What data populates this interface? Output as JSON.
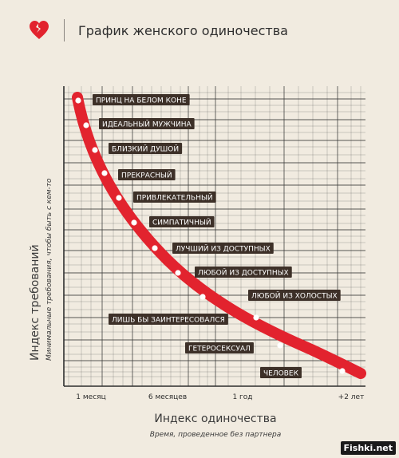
{
  "header": {
    "title": "График женского одиночества",
    "logo_icon": "broken-heart-icon",
    "logo_color": "#e2232e"
  },
  "watermark": "Fishki.net",
  "colors": {
    "background": "#f1ebe0",
    "grid": "#3a3a3a",
    "curve": "#e2232e",
    "label_bg": "#3d3028",
    "label_text": "#ffffff",
    "point": "#ffffff"
  },
  "chart_data": {
    "type": "line",
    "title": "График женского одиночества",
    "xlabel": "Индекс одиночества",
    "xsublabel": "Время, проведенное без партнера",
    "ylabel": "Индекс требований",
    "ysublabel": "Минимальные требования, чтобы быть с кем-то",
    "x_ticks": [
      "1 месяц",
      "6 месяцев",
      "1 год",
      "+2 лет"
    ],
    "grid": true,
    "series": [
      {
        "points": [
          {
            "label": "ПРИНЦ НА БЕЛОМ КОНЕ"
          },
          {
            "label": "ИДЕАЛЬНЫЙ МУЖЧИНА"
          },
          {
            "label": "БЛИЗКИЙ ДУШОЙ"
          },
          {
            "label": "ПРЕКРАСНЫЙ"
          },
          {
            "label": "ПРИВЛЕКАТЕЛЬНЫЙ"
          },
          {
            "label": "СИМПАТИЧНЫЙ"
          },
          {
            "label": "ЛУЧШИЙ ИЗ ДОСТУПНЫХ"
          },
          {
            "label": "ЛЮБОЙ ИЗ ДОСТУПНЫХ"
          },
          {
            "label": "ЛЮБОЙ ИЗ ХОЛОСТЫХ"
          },
          {
            "label": "ЛИШЬ БЫ ЗАИНТЕРЕСОВАЛСЯ"
          },
          {
            "label": "ГЕТЕРОСЕКСУАЛ"
          },
          {
            "label": "ЧЕЛОВЕК"
          }
        ]
      }
    ]
  }
}
